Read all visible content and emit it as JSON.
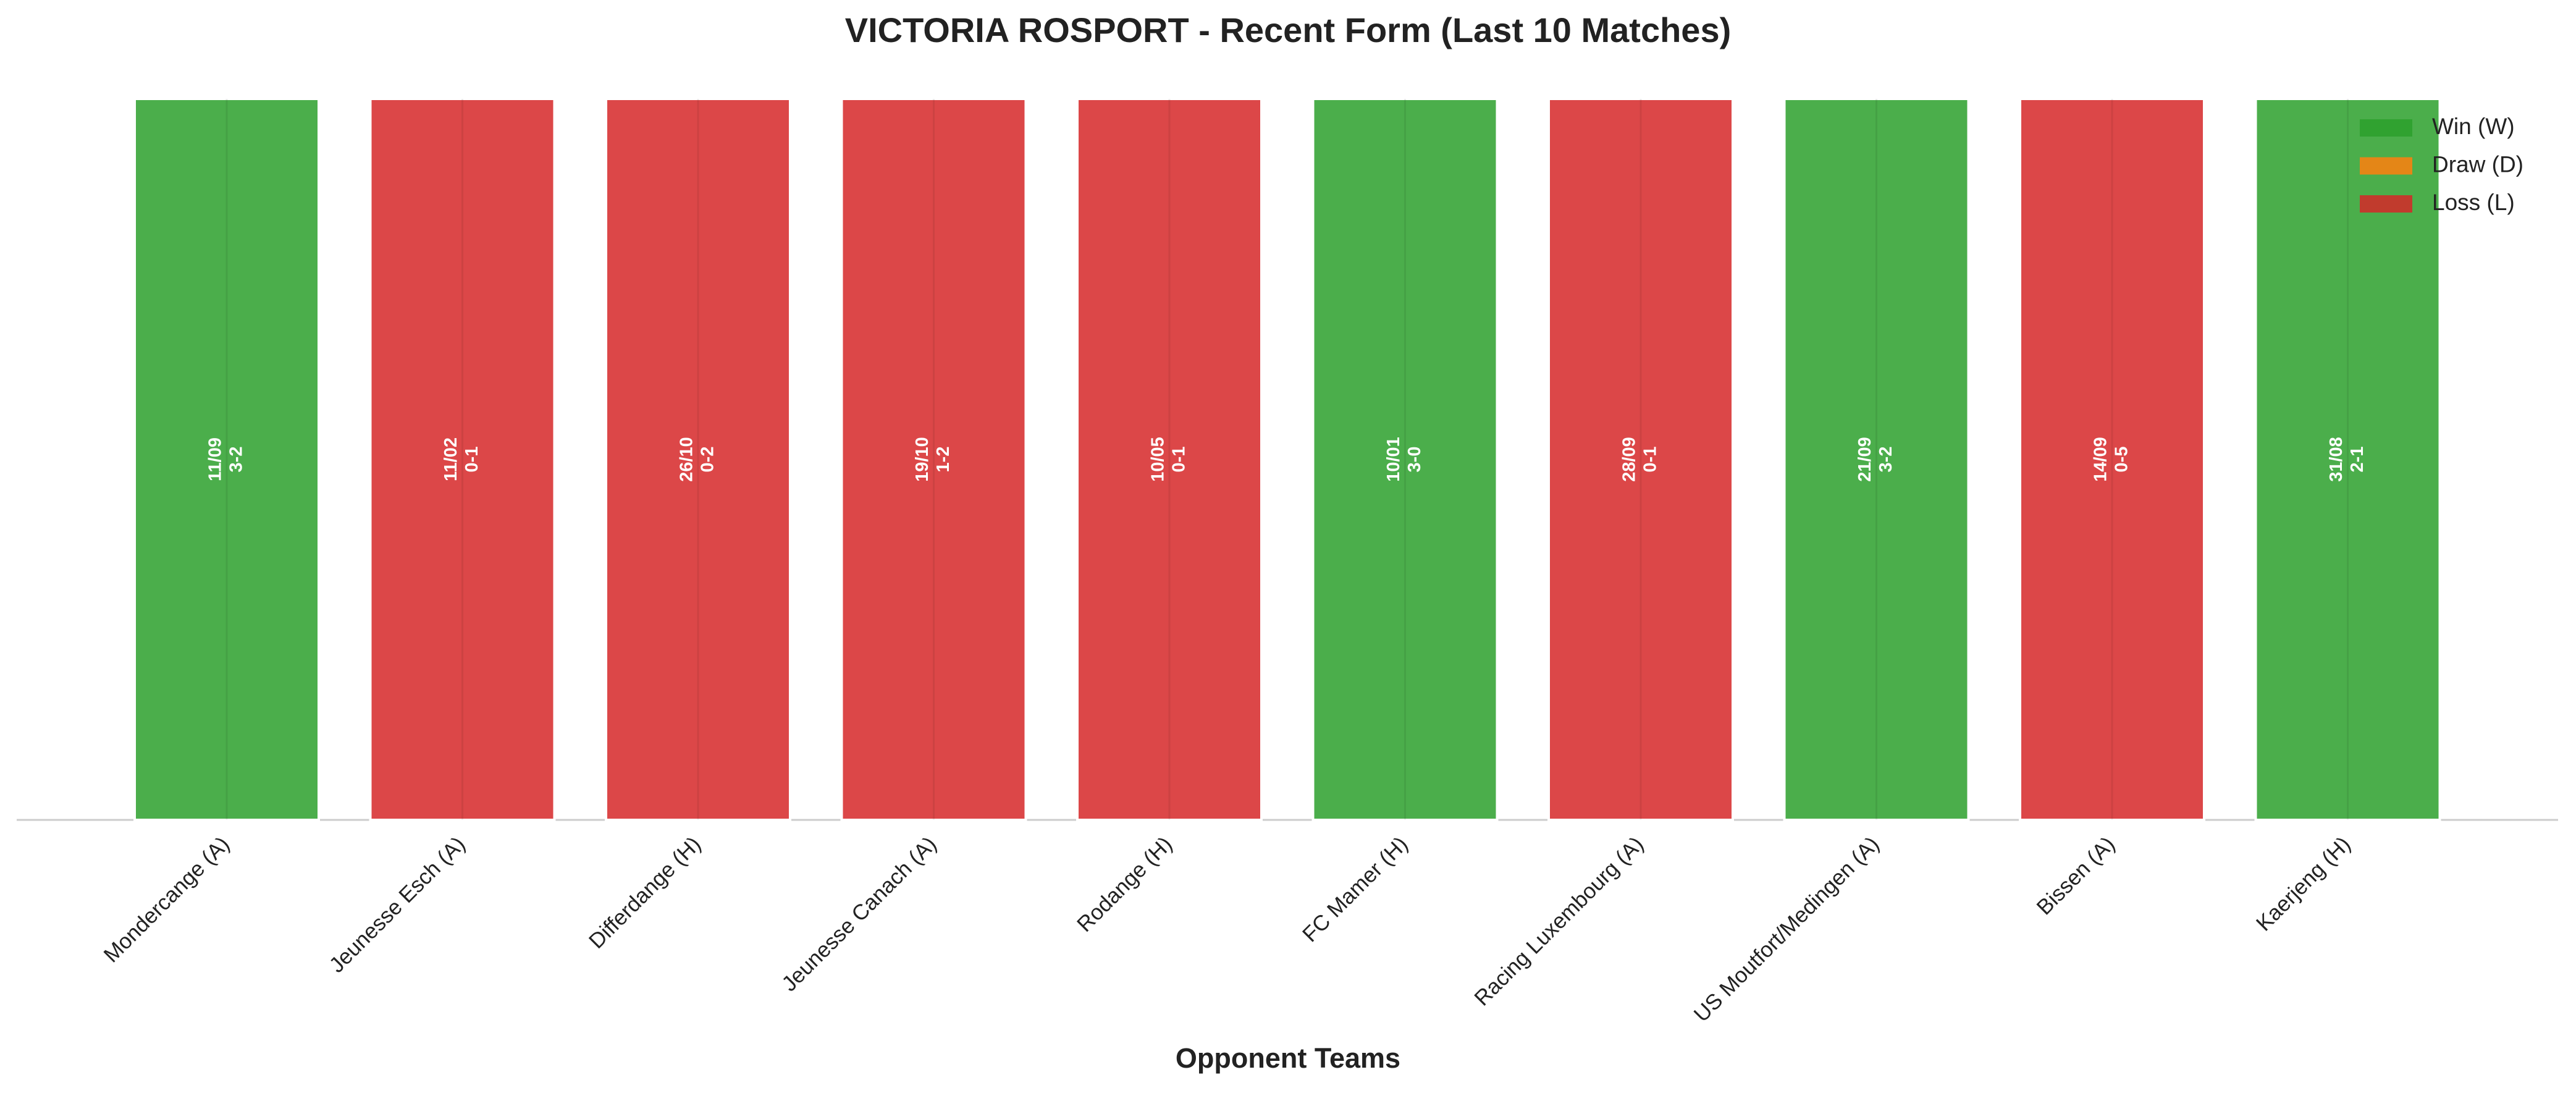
{
  "chart_data": {
    "type": "bar",
    "title": "VICTORIA ROSPORT - Recent Form (Last 10 Matches)",
    "x_label": "Opponent Teams",
    "categories": [
      "Mondercange (A)",
      "Jeunesse Esch (A)",
      "Differdange (H)",
      "Jeunesse Canach (A)",
      "Rodange (H)",
      "FC Mamer (H)",
      "Racing Luxembourg (A)",
      "US Moutfort/Medingen (A)",
      "Bissen (A)",
      "Kaerjeng (H)"
    ],
    "values": [
      1,
      1,
      1,
      1,
      1,
      1,
      1,
      1,
      1,
      1
    ],
    "dates": [
      "11/09",
      "11/02",
      "26/10",
      "19/10",
      "10/05",
      "10/01",
      "28/09",
      "21/09",
      "14/09",
      "31/08"
    ],
    "scores": [
      "3-2",
      "0-1",
      "0-2",
      "1-2",
      "0-1",
      "3-0",
      "0-1",
      "3-2",
      "0-5",
      "2-1"
    ],
    "colors": [
      "#2ca02c",
      "#d62728",
      "#d62728",
      "#d62728",
      "#d62728",
      "#2ca02c",
      "#d62728",
      "#2ca02c",
      "#d62728",
      "#2ca02c"
    ],
    "ylim": [
      0,
      1
    ],
    "legend": [
      {
        "name": "Win (W)",
        "color": "#2ca02c"
      },
      {
        "name": "Draw (D)",
        "color": "#ff7f0e"
      },
      {
        "name": "Loss (L)",
        "color": "#d62728"
      }
    ],
    "legend_position": "upper right"
  }
}
